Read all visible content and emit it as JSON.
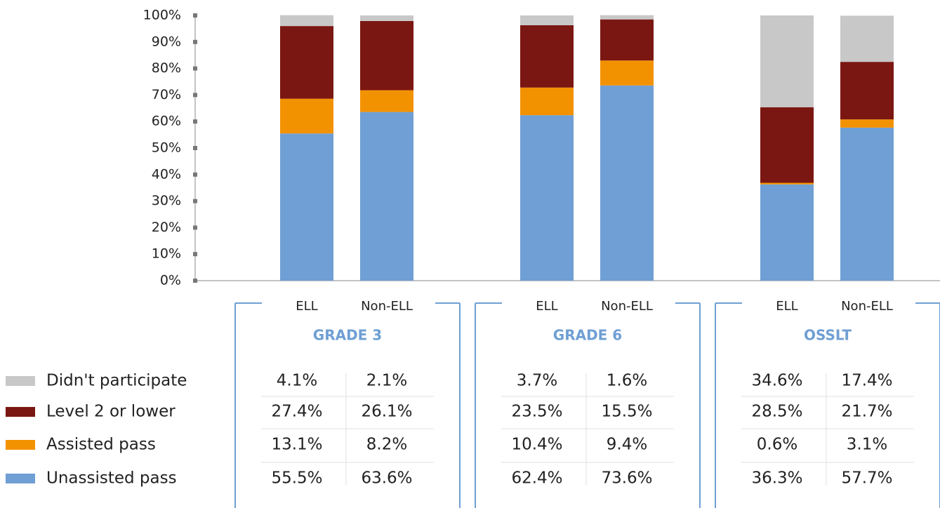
{
  "chart_data": {
    "type": "stacked_bar",
    "categories": [
      "ELL",
      "Non-ELL",
      "ELL",
      "Non-ELL",
      "ELL",
      "Non-ELL"
    ],
    "groups": [
      "GRADE 3",
      "GRADE 6",
      "OSSLT"
    ],
    "series": [
      {
        "name": "Unassisted pass",
        "color": "#6f9fd4",
        "values": [
          55.5,
          63.6,
          62.4,
          73.6,
          36.3,
          57.7
        ],
        "value_labels": [
          "55.5%",
          "63.6%",
          "62.4%",
          "73.6%",
          "36.3%",
          "57.7%"
        ]
      },
      {
        "name": "Assisted pass",
        "color": "#f39200",
        "values": [
          13.1,
          8.2,
          10.4,
          9.4,
          0.6,
          3.1
        ],
        "value_labels": [
          "13.1%",
          "8.2%",
          "10.4%",
          "9.4%",
          "0.6%",
          "3.1%"
        ]
      },
      {
        "name": "Level 2 or lower",
        "color": "#7b1712",
        "values": [
          27.4,
          26.1,
          23.5,
          15.5,
          28.5,
          21.7
        ],
        "value_labels": [
          "27.4%",
          "26.1%",
          "23.5%",
          "15.5%",
          "28.5%",
          "21.7%"
        ]
      },
      {
        "name": "Didn't participate",
        "color": "#c8c8c8",
        "values": [
          4.1,
          2.1,
          3.7,
          1.6,
          34.6,
          17.4
        ],
        "value_labels": [
          "4.1%",
          "2.1%",
          "3.7%",
          "1.6%",
          "34.6%",
          "17.4%"
        ]
      }
    ],
    "ylim": [
      0,
      100
    ],
    "yticks": [
      {
        "value": 0,
        "label": "0%"
      },
      {
        "value": 10,
        "label": "10%"
      },
      {
        "value": 20,
        "label": "20%"
      },
      {
        "value": 30,
        "label": "30%"
      },
      {
        "value": 40,
        "label": "40%"
      },
      {
        "value": 50,
        "label": "50%"
      },
      {
        "value": 60,
        "label": "60%"
      },
      {
        "value": 70,
        "label": "70%"
      },
      {
        "value": 80,
        "label": "80%"
      },
      {
        "value": 90,
        "label": "90%"
      },
      {
        "value": 100,
        "label": "100%"
      }
    ]
  }
}
